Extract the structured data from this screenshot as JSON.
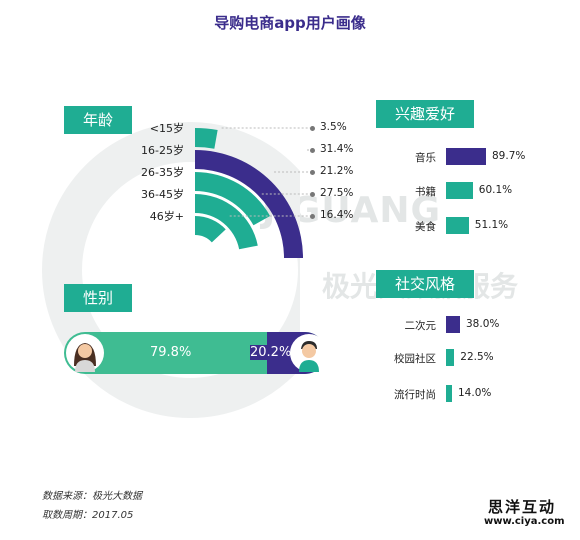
{
  "title": "导购电商app用户画像",
  "watermark": {
    "brand": "JIGUANG",
    "service": "极光大数据服务"
  },
  "sections": {
    "age": "年龄",
    "gender": "性别",
    "interest": "兴趣爱好",
    "social": "社交风格"
  },
  "chart_data": [
    {
      "type": "radial-bar",
      "title": "年龄",
      "categories": [
        "<15岁",
        "16-25岁",
        "26-35岁",
        "36-45岁",
        "46岁+"
      ],
      "values": [
        3.5,
        31.4,
        21.2,
        27.5,
        16.4
      ],
      "value_labels": [
        "3.5%",
        "31.4%",
        "21.2%",
        "27.5%",
        "16.4%"
      ],
      "colors": [
        "#1fad93",
        "#3b2d8c",
        "#1fad93",
        "#1fad93",
        "#1fad93"
      ],
      "max": 31.4
    },
    {
      "type": "bar",
      "title": "性别",
      "categories": [
        "女",
        "男"
      ],
      "values": [
        79.8,
        20.2
      ],
      "value_labels": [
        "79.8%",
        "20.2%"
      ],
      "colors": [
        "#3fbc92",
        "#3b2d8c"
      ]
    },
    {
      "type": "bar",
      "title": "兴趣爱好",
      "categories": [
        "音乐",
        "书籍",
        "美食"
      ],
      "values": [
        89.7,
        60.1,
        51.1
      ],
      "value_labels": [
        "89.7%",
        "60.1%",
        "51.1%"
      ],
      "colors": [
        "#3b2d8c",
        "#1fad93",
        "#1fad93"
      ]
    },
    {
      "type": "bar",
      "title": "社交风格",
      "categories": [
        "二次元",
        "校园社区",
        "流行时尚"
      ],
      "values": [
        38.0,
        22.5,
        14.0
      ],
      "value_labels": [
        "38.0%",
        "22.5%",
        "14.0%"
      ],
      "colors": [
        "#3b2d8c",
        "#1fad93",
        "#1fad93"
      ]
    }
  ],
  "footer": {
    "source": "数据来源：极光大数据",
    "period": "取数周期：2017.05"
  },
  "logo": {
    "name": "思洋互动",
    "url": "www.ciya.com"
  },
  "colors": {
    "teal": "#1fad93",
    "purple": "#3b2d8c",
    "green": "#3fbc92"
  }
}
